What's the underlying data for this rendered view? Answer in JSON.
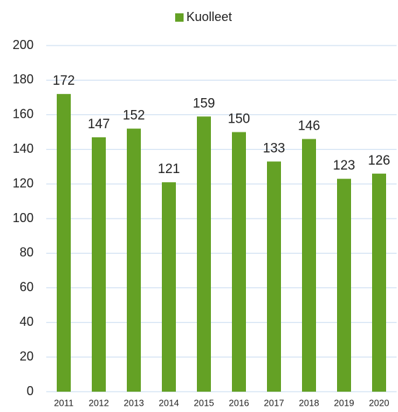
{
  "chart_data": {
    "type": "bar",
    "categories": [
      "2011",
      "2012",
      "2013",
      "2014",
      "2015",
      "2016",
      "2017",
      "2018",
      "2019",
      "2020"
    ],
    "series": [
      {
        "name": "Kuolleet",
        "color": "#64a125",
        "values": [
          172,
          147,
          152,
          121,
          159,
          150,
          133,
          146,
          123,
          126
        ]
      }
    ],
    "ylim": [
      0,
      200
    ],
    "yticks": [
      0,
      20,
      40,
      60,
      80,
      100,
      120,
      140,
      160,
      180,
      200
    ],
    "grid": true,
    "legend": "top",
    "data_labels": true
  }
}
